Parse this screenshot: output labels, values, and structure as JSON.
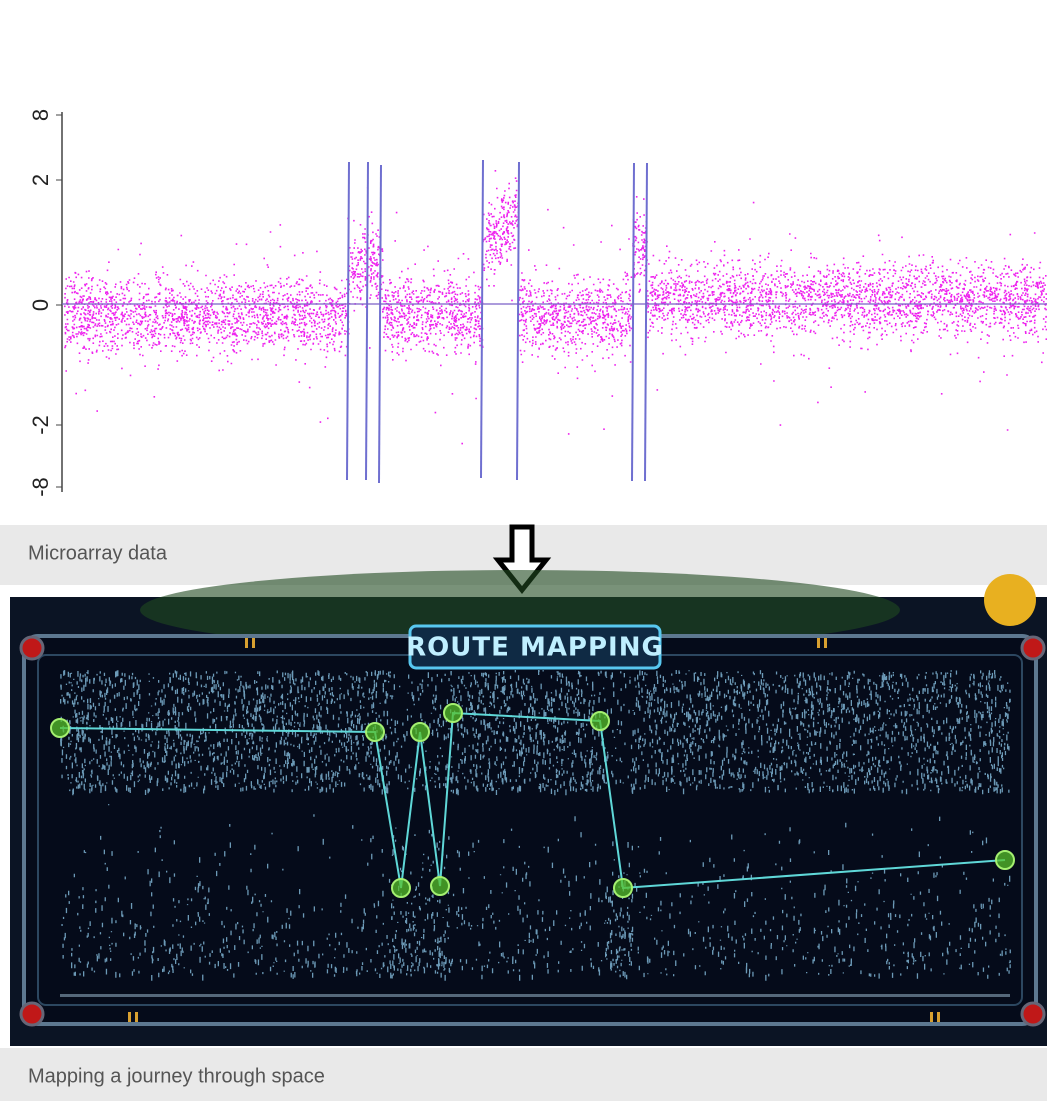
{
  "microarray_panel": {
    "y_axis_labels": [
      "8",
      "2",
      "0",
      "-2",
      "-8"
    ],
    "caption": "Microarray data"
  },
  "game_panel": {
    "title": "ROUTE MAPPING",
    "caption": "Mapping a journey through space"
  }
}
